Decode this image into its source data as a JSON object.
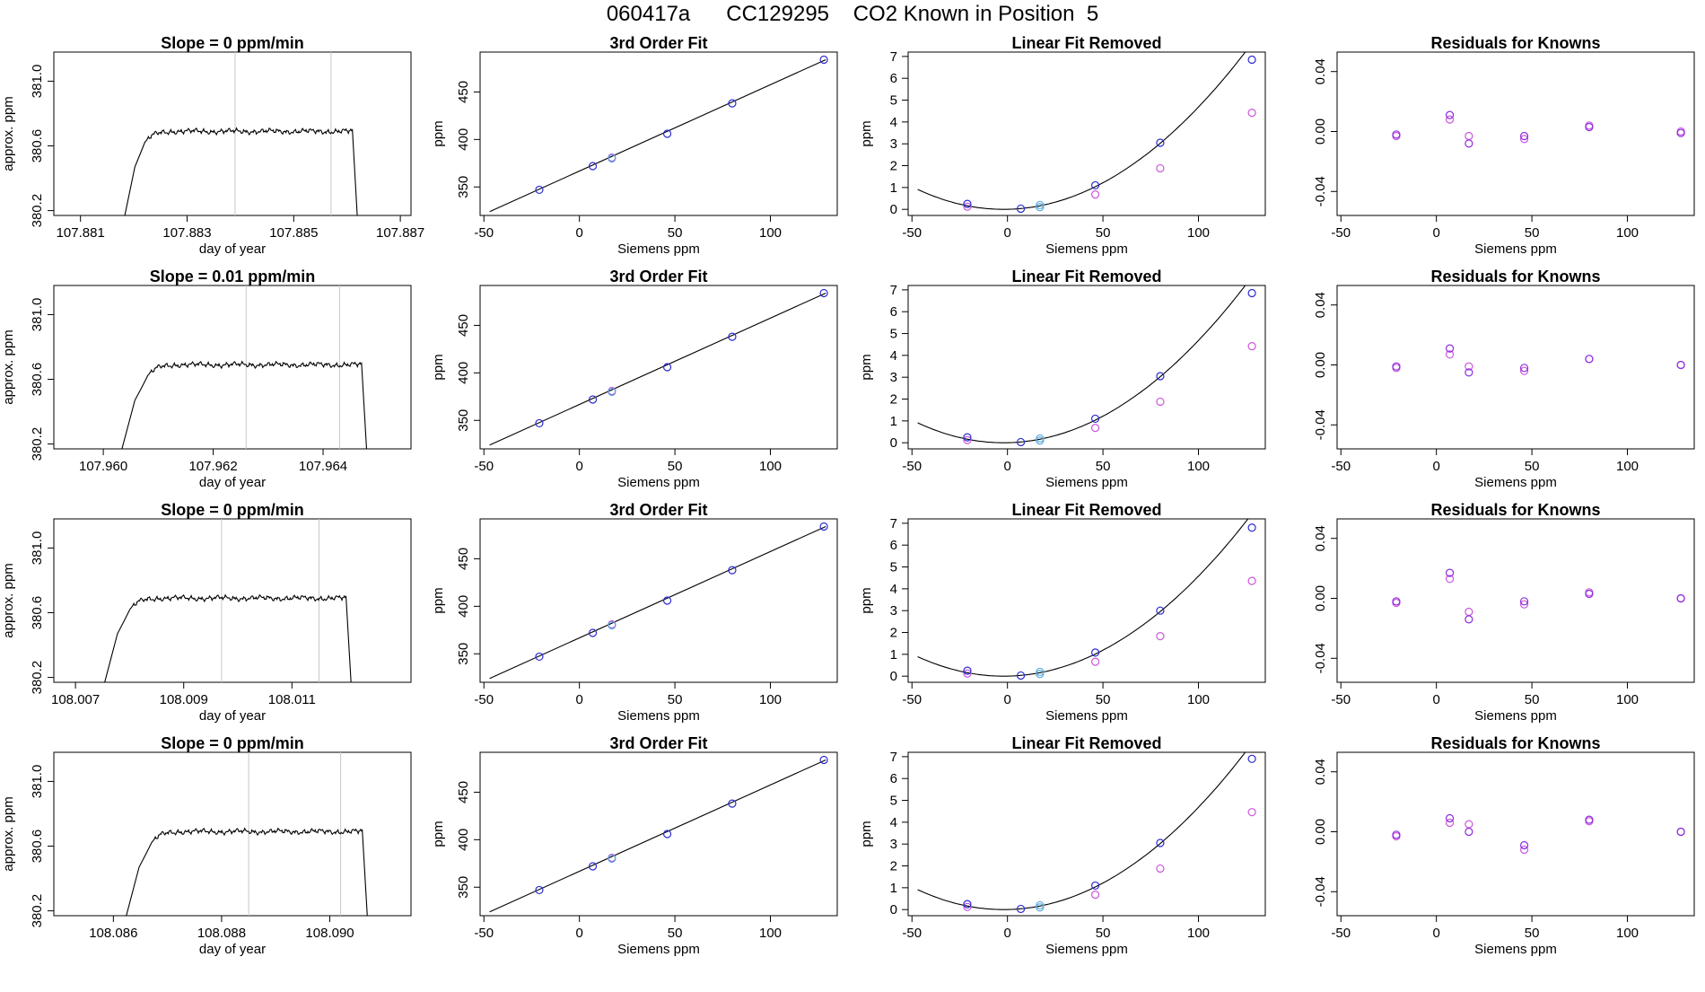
{
  "page_title": "060417a      CC129295    CO2 Known in Position  5",
  "colors": {
    "axis": "#000000",
    "trace": "#000000",
    "vline": "#c8c8c8",
    "point_blue": "#2a2ad0",
    "point_purple": "#8a2be2",
    "point_magenta": "#cc55dd",
    "point_lightblue": "#5aaadd"
  },
  "chart_data": [
    {
      "type": "line",
      "panel": "trace",
      "row": 1,
      "title": "Slope =  0  ppm/min",
      "xlabel": "day of year",
      "ylabel": "approx. ppm",
      "xlim": [
        107.8805,
        107.8872
      ],
      "ylim": [
        380.17,
        381.18
      ],
      "xticks": [
        "107.881",
        "107.883",
        "107.885",
        "107.887"
      ],
      "yticks": [
        "380.2",
        "380.6",
        "381.0"
      ],
      "rise": [
        107.8818,
        107.8822
      ],
      "fall": [
        107.8861,
        107.8862
      ],
      "vlines": [
        107.8839,
        107.8857
      ],
      "plateau": 380.69
    },
    {
      "type": "line",
      "panel": "trace",
      "row": 2,
      "title": "Slope =  0.01  ppm/min",
      "xlabel": "day of year",
      "ylabel": "approx. ppm",
      "xlim": [
        107.9591,
        107.9656
      ],
      "ylim": [
        380.17,
        381.18
      ],
      "xticks": [
        "107.960",
        "107.962",
        "107.964"
      ],
      "yticks": [
        "380.2",
        "380.6",
        "381.0"
      ],
      "rise": [
        107.9603,
        107.9608
      ],
      "fall": [
        107.9647,
        107.9648
      ],
      "vlines": [
        107.9626,
        107.9643
      ],
      "plateau": 380.69
    },
    {
      "type": "line",
      "panel": "trace",
      "row": 3,
      "title": "Slope =  0  ppm/min",
      "xlabel": "day of year",
      "ylabel": "approx. ppm",
      "xlim": [
        108.0066,
        108.0132
      ],
      "ylim": [
        380.17,
        381.18
      ],
      "xticks": [
        "108.007",
        "108.009",
        "108.011"
      ],
      "yticks": [
        "380.2",
        "380.6",
        "381.0"
      ],
      "rise": [
        108.0075,
        108.008
      ],
      "fall": [
        108.012,
        108.0121
      ],
      "vlines": [
        108.0097,
        108.0115
      ],
      "plateau": 380.69
    },
    {
      "type": "line",
      "panel": "trace",
      "row": 4,
      "title": "Slope =  0  ppm/min",
      "xlabel": "day of year",
      "ylabel": "approx. ppm",
      "xlim": [
        108.0849,
        108.0915
      ],
      "ylim": [
        380.17,
        381.18
      ],
      "xticks": [
        "108.086",
        "108.088",
        "108.090"
      ],
      "yticks": [
        "380.2",
        "380.6",
        "381.0"
      ],
      "rise": [
        108.0862,
        108.0867
      ],
      "fall": [
        108.0906,
        108.0907
      ],
      "vlines": [
        108.0885,
        108.0902
      ],
      "plateau": 380.69
    },
    {
      "type": "scatter",
      "panel": "fit",
      "row": 1,
      "title": "3rd Order Fit",
      "xlabel": "Siemens ppm",
      "ylabel": "ppm",
      "xlim": [
        -52,
        135
      ],
      "ylim": [
        320,
        492
      ],
      "xticks": [
        -50,
        0,
        50,
        100
      ],
      "yticks": [
        350,
        400,
        450
      ],
      "line": [
        [
          -47,
          324
        ],
        [
          129,
          484
        ]
      ],
      "points_blue": [
        [
          -21,
          347
        ],
        [
          7,
          372
        ],
        [
          46,
          406
        ],
        [
          80,
          438
        ],
        [
          128,
          484
        ]
      ],
      "points_lightblue": [
        [
          17,
          380
        ]
      ],
      "points_magenta": [
        [
          17,
          381
        ]
      ]
    },
    {
      "type": "scatter",
      "panel": "fit",
      "row": 2,
      "title": "3rd Order Fit",
      "xlabel": "Siemens ppm",
      "ylabel": "ppm",
      "xlim": [
        -52,
        135
      ],
      "ylim": [
        320,
        492
      ],
      "xticks": [
        -50,
        0,
        50,
        100
      ],
      "yticks": [
        350,
        400,
        450
      ],
      "line": [
        [
          -47,
          324
        ],
        [
          129,
          484
        ]
      ],
      "points_blue": [
        [
          -21,
          347
        ],
        [
          7,
          372
        ],
        [
          46,
          406
        ],
        [
          80,
          438
        ],
        [
          128,
          484
        ]
      ],
      "points_lightblue": [
        [
          17,
          380
        ]
      ],
      "points_magenta": [
        [
          17,
          381
        ]
      ]
    },
    {
      "type": "scatter",
      "panel": "fit",
      "row": 3,
      "title": "3rd Order Fit",
      "xlabel": "Siemens ppm",
      "ylabel": "ppm",
      "xlim": [
        -52,
        135
      ],
      "ylim": [
        320,
        492
      ],
      "xticks": [
        -50,
        0,
        50,
        100
      ],
      "yticks": [
        350,
        400,
        450
      ],
      "line": [
        [
          -47,
          324
        ],
        [
          129,
          484
        ]
      ],
      "points_blue": [
        [
          -21,
          347
        ],
        [
          7,
          372
        ],
        [
          46,
          406
        ],
        [
          80,
          438
        ],
        [
          128,
          484
        ]
      ],
      "points_lightblue": [
        [
          17,
          380
        ]
      ],
      "points_magenta": [
        [
          17,
          381
        ]
      ]
    },
    {
      "type": "scatter",
      "panel": "fit",
      "row": 4,
      "title": "3rd Order Fit",
      "xlabel": "Siemens ppm",
      "ylabel": "ppm",
      "xlim": [
        -52,
        135
      ],
      "ylim": [
        320,
        492
      ],
      "xticks": [
        -50,
        0,
        50,
        100
      ],
      "yticks": [
        350,
        400,
        450
      ],
      "line": [
        [
          -47,
          324
        ],
        [
          129,
          484
        ]
      ],
      "points_blue": [
        [
          -21,
          347
        ],
        [
          7,
          372
        ],
        [
          46,
          406
        ],
        [
          80,
          438
        ],
        [
          128,
          484
        ]
      ],
      "points_lightblue": [
        [
          17,
          380
        ]
      ],
      "points_magenta": [
        [
          17,
          381
        ]
      ]
    },
    {
      "type": "scatter",
      "panel": "linear",
      "row": 1,
      "title": "Linear Fit Removed",
      "xlabel": "Siemens ppm",
      "ylabel": "ppm",
      "xlim": [
        -52,
        135
      ],
      "ylim": [
        -0.28,
        7.2
      ],
      "xticks": [
        -50,
        0,
        50,
        100
      ],
      "yticks": [
        0,
        1,
        2,
        3,
        4,
        5,
        6,
        7
      ],
      "curve": {
        "a": 0.00045,
        "c": 0,
        "x0": -2,
        "from": -47,
        "to": 128
      },
      "points_blue": [
        [
          -21,
          0.25
        ],
        [
          7,
          0.03
        ],
        [
          46,
          1.1
        ],
        [
          80,
          3.05
        ],
        [
          128,
          6.85
        ]
      ],
      "points_lightblue": [
        [
          17,
          0.2
        ],
        [
          17,
          0.1
        ]
      ],
      "points_magenta": [
        [
          -21,
          0.12
        ],
        [
          46,
          0.68
        ],
        [
          80,
          1.88
        ],
        [
          128,
          4.42
        ]
      ]
    },
    {
      "type": "scatter",
      "panel": "linear",
      "row": 2,
      "title": "Linear Fit Removed",
      "xlabel": "Siemens ppm",
      "ylabel": "ppm",
      "xlim": [
        -52,
        135
      ],
      "ylim": [
        -0.28,
        7.2
      ],
      "xticks": [
        -50,
        0,
        50,
        100
      ],
      "yticks": [
        0,
        1,
        2,
        3,
        4,
        5,
        6,
        7
      ],
      "curve": {
        "a": 0.00045,
        "c": 0,
        "x0": -2,
        "from": -47,
        "to": 128
      },
      "points_blue": [
        [
          -21,
          0.25
        ],
        [
          7,
          0.03
        ],
        [
          46,
          1.1
        ],
        [
          80,
          3.05
        ],
        [
          128,
          6.85
        ]
      ],
      "points_lightblue": [
        [
          17,
          0.2
        ],
        [
          17,
          0.1
        ]
      ],
      "points_magenta": [
        [
          -21,
          0.12
        ],
        [
          46,
          0.68
        ],
        [
          80,
          1.88
        ],
        [
          128,
          4.42
        ]
      ]
    },
    {
      "type": "scatter",
      "panel": "linear",
      "row": 3,
      "title": "Linear Fit Removed",
      "xlabel": "Siemens ppm",
      "ylabel": "ppm",
      "xlim": [
        -52,
        135
      ],
      "ylim": [
        -0.28,
        7.2
      ],
      "xticks": [
        -50,
        0,
        50,
        100
      ],
      "yticks": [
        0,
        1,
        2,
        3,
        4,
        5,
        6,
        7
      ],
      "curve": {
        "a": 0.00044,
        "c": 0,
        "x0": -2,
        "from": -47,
        "to": 128
      },
      "points_blue": [
        [
          -21,
          0.25
        ],
        [
          7,
          0.03
        ],
        [
          46,
          1.08
        ],
        [
          80,
          3.0
        ],
        [
          128,
          6.8
        ]
      ],
      "points_lightblue": [
        [
          17,
          0.2
        ],
        [
          17,
          0.1
        ]
      ],
      "points_magenta": [
        [
          -21,
          0.12
        ],
        [
          46,
          0.66
        ],
        [
          80,
          1.83
        ],
        [
          128,
          4.36
        ]
      ]
    },
    {
      "type": "scatter",
      "panel": "linear",
      "row": 4,
      "title": "Linear Fit Removed",
      "xlabel": "Siemens ppm",
      "ylabel": "ppm",
      "xlim": [
        -52,
        135
      ],
      "ylim": [
        -0.28,
        7.2
      ],
      "xticks": [
        -50,
        0,
        50,
        100
      ],
      "yticks": [
        0,
        1,
        2,
        3,
        4,
        5,
        6,
        7
      ],
      "curve": {
        "a": 0.00045,
        "c": 0,
        "x0": -2,
        "from": -47,
        "to": 128
      },
      "points_blue": [
        [
          -21,
          0.25
        ],
        [
          7,
          0.03
        ],
        [
          46,
          1.1
        ],
        [
          80,
          3.05
        ],
        [
          128,
          6.9
        ]
      ],
      "points_lightblue": [
        [
          17,
          0.2
        ],
        [
          17,
          0.1
        ]
      ],
      "points_magenta": [
        [
          -21,
          0.12
        ],
        [
          46,
          0.68
        ],
        [
          80,
          1.88
        ],
        [
          128,
          4.46
        ]
      ]
    },
    {
      "type": "scatter",
      "panel": "residual",
      "row": 1,
      "title": "Residuals for Knowns",
      "xlabel": "Siemens ppm",
      "ylabel": "",
      "xlim": [
        -52,
        135
      ],
      "ylim": [
        -0.056,
        0.053
      ],
      "xticks": [
        -50,
        0,
        50,
        100
      ],
      "yticks": [
        "-0.04",
        "0.00",
        "0.04"
      ],
      "ytick_values": [
        -0.04,
        0,
        0.04
      ],
      "points_blue": [
        [
          -21,
          -0.002
        ],
        [
          7,
          0.011
        ],
        [
          17,
          -0.008
        ],
        [
          46,
          -0.003
        ],
        [
          80,
          0.003
        ],
        [
          128,
          -0.001
        ]
      ],
      "points_magenta": [
        [
          -21,
          -0.003
        ],
        [
          7,
          0.008
        ],
        [
          17,
          -0.003
        ],
        [
          46,
          -0.005
        ],
        [
          80,
          0.004
        ],
        [
          128,
          0.0
        ]
      ]
    },
    {
      "type": "scatter",
      "panel": "residual",
      "row": 2,
      "title": "Residuals for Knowns",
      "xlabel": "Siemens ppm",
      "ylabel": "",
      "xlim": [
        -52,
        135
      ],
      "ylim": [
        -0.056,
        0.053
      ],
      "xticks": [
        -50,
        0,
        50,
        100
      ],
      "yticks": [
        "-0.04",
        "0.00",
        "0.04"
      ],
      "ytick_values": [
        -0.04,
        0,
        0.04
      ],
      "points_blue": [
        [
          -21,
          -0.001
        ],
        [
          7,
          0.011
        ],
        [
          17,
          -0.005
        ],
        [
          46,
          -0.002
        ],
        [
          80,
          0.004
        ],
        [
          128,
          0.0
        ]
      ],
      "points_magenta": [
        [
          -21,
          -0.002
        ],
        [
          7,
          0.007
        ],
        [
          17,
          -0.001
        ],
        [
          46,
          -0.004
        ],
        [
          80,
          0.004
        ],
        [
          128,
          0.0
        ]
      ]
    },
    {
      "type": "scatter",
      "panel": "residual",
      "row": 3,
      "title": "Residuals for Knowns",
      "xlabel": "Siemens ppm",
      "ylabel": "",
      "xlim": [
        -52,
        135
      ],
      "ylim": [
        -0.056,
        0.053
      ],
      "xticks": [
        -50,
        0,
        50,
        100
      ],
      "yticks": [
        "-0.04",
        "0.00",
        "0.04"
      ],
      "ytick_values": [
        -0.04,
        0,
        0.04
      ],
      "points_blue": [
        [
          -21,
          -0.002
        ],
        [
          7,
          0.017
        ],
        [
          17,
          -0.014
        ],
        [
          46,
          -0.002
        ],
        [
          80,
          0.003
        ],
        [
          128,
          0.0
        ]
      ],
      "points_magenta": [
        [
          -21,
          -0.003
        ],
        [
          7,
          0.013
        ],
        [
          17,
          -0.009
        ],
        [
          46,
          -0.004
        ],
        [
          80,
          0.004
        ],
        [
          128,
          0.0
        ]
      ]
    },
    {
      "type": "scatter",
      "panel": "residual",
      "row": 4,
      "title": "Residuals for Knowns",
      "xlabel": "Siemens ppm",
      "ylabel": "",
      "xlim": [
        -52,
        135
      ],
      "ylim": [
        -0.056,
        0.053
      ],
      "xticks": [
        -50,
        0,
        50,
        100
      ],
      "yticks": [
        "-0.04",
        "0.00",
        "0.04"
      ],
      "ytick_values": [
        -0.04,
        0,
        0.04
      ],
      "points_blue": [
        [
          -21,
          -0.002
        ],
        [
          7,
          0.009
        ],
        [
          17,
          0.0
        ],
        [
          46,
          -0.009
        ],
        [
          80,
          0.008
        ],
        [
          128,
          0.0
        ]
      ],
      "points_magenta": [
        [
          -21,
          -0.003
        ],
        [
          7,
          0.006
        ],
        [
          17,
          0.005
        ],
        [
          46,
          -0.012
        ],
        [
          80,
          0.007
        ],
        [
          128,
          0.0
        ]
      ]
    }
  ]
}
